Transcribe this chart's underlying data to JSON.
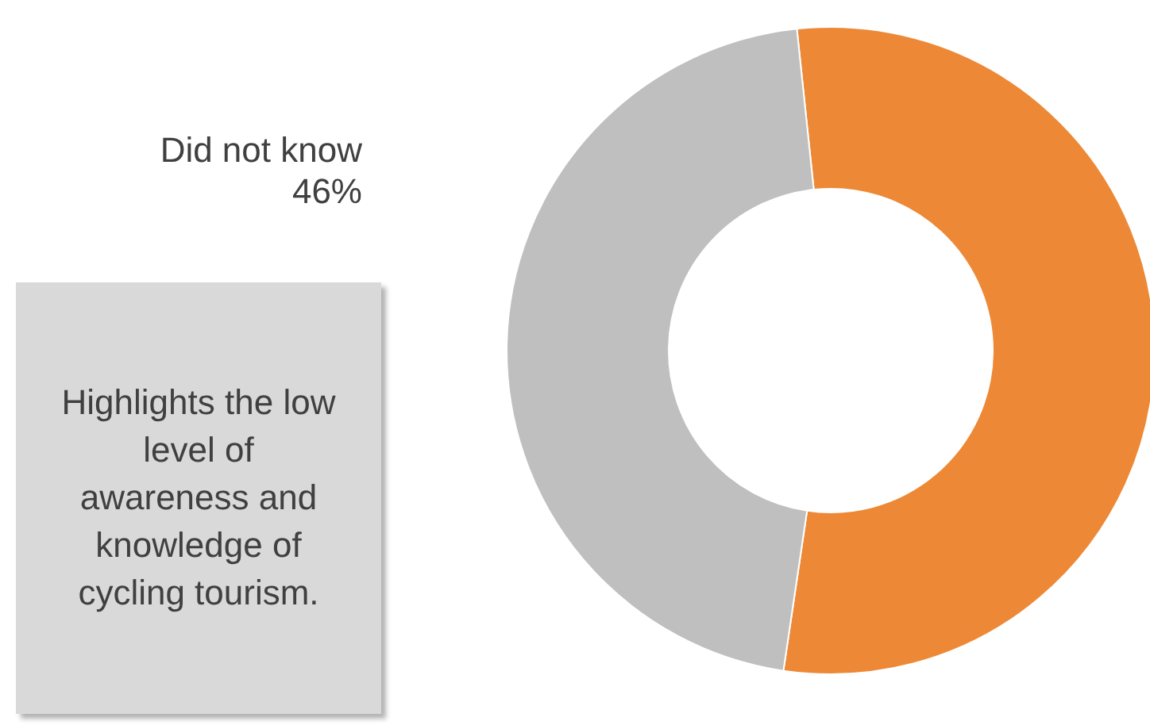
{
  "chart_data": {
    "type": "donut",
    "categories": [
      null,
      "Did not know"
    ],
    "values": [
      54,
      46
    ],
    "colors": [
      "#ed8936",
      "#bfbfbf"
    ],
    "value_labels": [
      null,
      "46%"
    ],
    "annotations": [
      "Highlights the low level of awareness and knowledge of cycling tourism."
    ]
  }
}
